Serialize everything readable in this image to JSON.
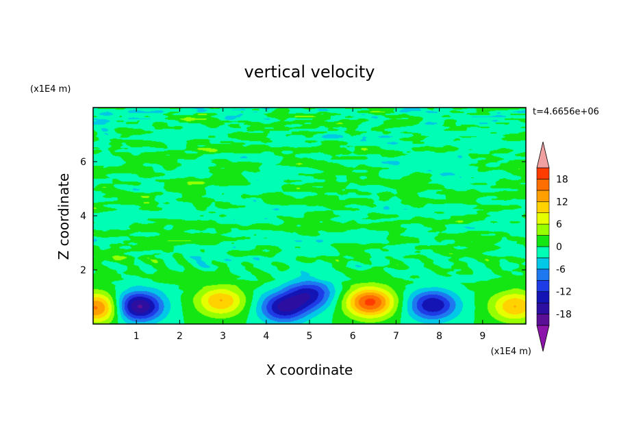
{
  "chart_data": {
    "type": "heatmap",
    "title": "vertical velocity",
    "xlabel": "X coordinate",
    "ylabel": "Z coordinate",
    "x_unit": "(x1E4 m)",
    "y_unit": "(x1E4 m)",
    "time_label": "t=4.6656e+06",
    "xlim": [
      0,
      10
    ],
    "ylim": [
      0,
      8
    ],
    "x_ticks": [
      1,
      2,
      3,
      4,
      5,
      6,
      7,
      8,
      9
    ],
    "y_ticks": [
      2,
      4,
      6
    ],
    "colorbar": {
      "levels": [
        -21,
        -18,
        -15,
        -12,
        -9,
        -6,
        -3,
        0,
        3,
        6,
        9,
        12,
        15,
        18,
        21
      ],
      "tick_labels": [
        "18",
        "12",
        "6",
        "0",
        "-6",
        "-12",
        "-18"
      ],
      "tick_values": [
        18,
        12,
        6,
        0,
        -6,
        -12,
        -18
      ],
      "colors": [
        "#5a0f96",
        "#2c0fa0",
        "#1414b4",
        "#1e3ce6",
        "#1e78f0",
        "#00c8e6",
        "#00ffb4",
        "#14e614",
        "#96ff00",
        "#e6ff00",
        "#ffd200",
        "#ffa000",
        "#ff6e00",
        "#ff3c00",
        "#e6141e"
      ],
      "over_color": "#f0a0a0",
      "under_color": "#8c14aa"
    },
    "features": [
      {
        "x": 0.1,
        "z": 0.6,
        "w": 16
      },
      {
        "x": 1.05,
        "z": 0.65,
        "w": -19
      },
      {
        "x": 2.95,
        "z": 0.85,
        "w": 12
      },
      {
        "x": 4.4,
        "z": 0.6,
        "w": -15
      },
      {
        "x": 5.0,
        "z": 1.1,
        "w": -13
      },
      {
        "x": 6.4,
        "z": 0.8,
        "w": 19
      },
      {
        "x": 7.85,
        "z": 0.7,
        "w": -15
      },
      {
        "x": 9.75,
        "z": 0.65,
        "w": 12
      }
    ]
  }
}
